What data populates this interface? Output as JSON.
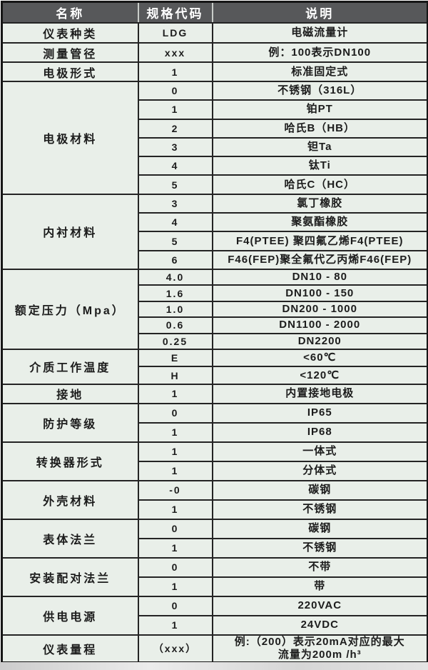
{
  "colors": {
    "header_bg": "#57585a",
    "header_text": "#ffffff",
    "row_bg": "#e9efe9",
    "border": "#242424",
    "text": "#1c1c1c"
  },
  "table": {
    "headers": [
      "名称",
      "规格代码",
      "说明"
    ],
    "groups": [
      {
        "name": "仪表种类",
        "rows": [
          {
            "code": "LDG",
            "desc": "电磁流量计"
          }
        ]
      },
      {
        "name": "测量管径",
        "rows": [
          {
            "code": "xxx",
            "desc": "例：100表示DN100"
          }
        ]
      },
      {
        "name": "电极形式",
        "rows": [
          {
            "code": "1",
            "desc": "标准固定式"
          }
        ]
      },
      {
        "name": "电极材料",
        "rows": [
          {
            "code": "0",
            "desc": "不锈钢（316L）"
          },
          {
            "code": "1",
            "desc": "铂PT"
          },
          {
            "code": "2",
            "desc": "哈氏B（HB）"
          },
          {
            "code": "3",
            "desc": "钽Ta"
          },
          {
            "code": "4",
            "desc": "钛Ti"
          },
          {
            "code": "5",
            "desc": "哈氏C（HC）"
          }
        ]
      },
      {
        "name": "内衬材料",
        "rows": [
          {
            "code": "3",
            "desc": "氯丁橡胶"
          },
          {
            "code": "4",
            "desc": "聚氨酯橡胶"
          },
          {
            "code": "5",
            "desc": "F4(PTEE) 聚四氟乙烯F4(PTEE)"
          },
          {
            "code": "6",
            "desc": "F46(FEP)聚全氟代乙丙烯F46(FEP)"
          }
        ]
      },
      {
        "name": "额定压力（Mpa）",
        "rows": [
          {
            "code": "4.0",
            "desc": "DN10 - 80"
          },
          {
            "code": "1.6",
            "desc": "DN100 - 150"
          },
          {
            "code": "1.0",
            "desc": "DN200 - 1000"
          },
          {
            "code": "0.6",
            "desc": "DN1100 - 2000"
          },
          {
            "code": "0.25",
            "desc": "DN2200"
          }
        ]
      },
      {
        "name": "介质工作温度",
        "rows": [
          {
            "code": "E",
            "desc": "<60℃"
          },
          {
            "code": "H",
            "desc": "<120℃"
          }
        ]
      },
      {
        "name": "接地",
        "rows": [
          {
            "code": "1",
            "desc": "内置接地电极"
          }
        ]
      },
      {
        "name": "防护等级",
        "rows": [
          {
            "code": "0",
            "desc": "IP65"
          },
          {
            "code": "1",
            "desc": "IP68"
          }
        ]
      },
      {
        "name": "转换器形式",
        "rows": [
          {
            "code": "1",
            "desc": "一体式"
          },
          {
            "code": "1",
            "desc": "分体式"
          }
        ]
      },
      {
        "name": "外壳材料",
        "rows": [
          {
            "code": "-0",
            "desc": "碳钢"
          },
          {
            "code": "1",
            "desc": "不锈钢"
          }
        ]
      },
      {
        "name": "表体法兰",
        "rows": [
          {
            "code": "0",
            "desc": "碳钢"
          },
          {
            "code": "1",
            "desc": "不锈钢"
          }
        ]
      },
      {
        "name": "安装配对法兰",
        "rows": [
          {
            "code": "0",
            "desc": "不带"
          },
          {
            "code": "1",
            "desc": "带"
          }
        ]
      },
      {
        "name": "供电电源",
        "rows": [
          {
            "code": "0",
            "desc": "220VAC"
          },
          {
            "code": "1",
            "desc": "24VDC"
          }
        ]
      },
      {
        "name": "仪表量程",
        "rows": [
          {
            "code": "（xxx）",
            "desc": "例:（200）表示20mA对应的最大",
            "desc2": "流量为200m /h³"
          }
        ]
      }
    ]
  }
}
